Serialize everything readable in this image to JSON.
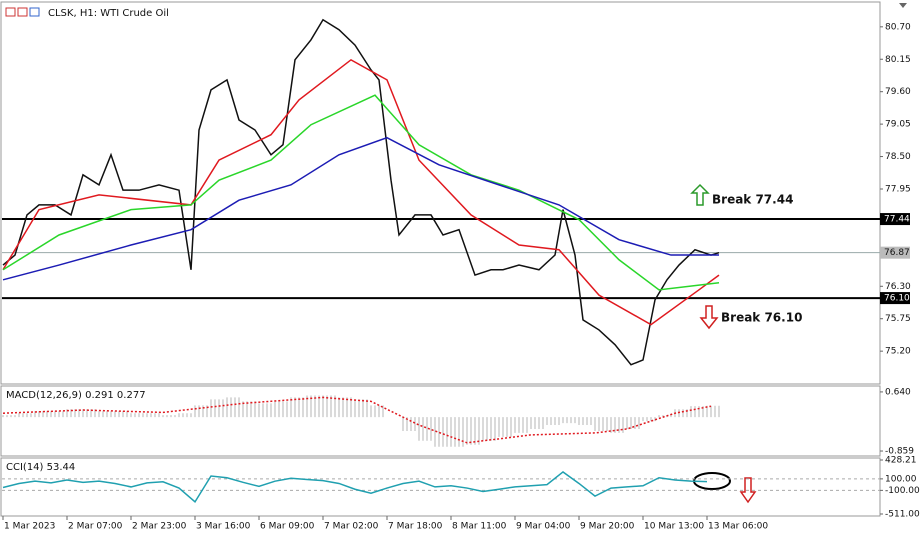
{
  "chart_data": [
    {
      "type": "line",
      "title": "CLSK, H1:  WTI Crude Oil",
      "grid": false,
      "xlim": [
        -0.25,
        219.25
      ],
      "xticks": [
        {
          "value": 0,
          "label": "1 Mar 2023"
        },
        {
          "value": 16,
          "label": "2 Mar 07:00"
        },
        {
          "value": 32,
          "label": "2 Mar 23:00"
        },
        {
          "value": 48,
          "label": "3 Mar 16:00"
        },
        {
          "value": 64,
          "label": "6 Mar 09:00"
        },
        {
          "value": 80,
          "label": "7 Mar 02:00"
        },
        {
          "value": 96,
          "label": "7 Mar 18:00"
        },
        {
          "value": 112,
          "label": "8 Mar 11:00"
        },
        {
          "value": 128,
          "label": "9 Mar 04:00"
        },
        {
          "value": 144,
          "label": "9 Mar 20:00"
        },
        {
          "value": 160,
          "label": "10 Mar 13:00"
        },
        {
          "value": 176,
          "label": "13 Mar 06:00"
        }
      ],
      "ylim": [
        74.66,
        81.07
      ],
      "yticks": [
        {
          "value": 80.7,
          "label": "80.70"
        },
        80.15,
        {
          "value": 79.6,
          "label": "79.60"
        },
        79.05,
        {
          "value": 78.5,
          "label": "78.50"
        },
        77.95,
        {
          "value": 76.3,
          "label": "76.30"
        },
        75.75,
        {
          "value": 75.2,
          "label": "75.20"
        }
      ],
      "levels": [
        77.44,
        {
          "value": 76.1,
          "label": "76.10"
        }
      ],
      "current_price": 76.87,
      "annotations": [
        "Break 77.44",
        "Break 76.10"
      ],
      "series": [
        {
          "color": "#111111",
          "x": [
            0,
            3,
            6,
            9,
            13,
            17,
            20,
            24,
            27,
            30,
            34,
            39,
            44,
            47,
            49,
            52,
            56,
            59,
            63,
            67,
            70,
            73,
            77,
            80,
            84,
            88,
            92,
            94,
            97,
            99,
            103,
            107,
            110,
            114,
            118,
            122,
            125,
            129,
            134,
            138,
            140,
            143,
            145,
            149,
            153,
            157,
            160,
            163,
            166,
            169,
            173,
            177,
            179
          ],
          "values": [
            76.66,
            76.83,
            77.51,
            77.68,
            77.68,
            77.51,
            78.19,
            78.02,
            78.53,
            77.93,
            77.93,
            78.02,
            77.93,
            76.58,
            78.95,
            79.63,
            79.8,
            79.12,
            78.95,
            78.53,
            78.7,
            80.14,
            80.48,
            80.82,
            80.65,
            80.39,
            79.97,
            79.8,
            78.1,
            77.17,
            77.51,
            77.51,
            77.17,
            77.26,
            76.49,
            76.58,
            76.58,
            76.66,
            76.58,
            76.83,
            77.6,
            76.83,
            75.73,
            75.56,
            75.31,
            74.97,
            75.05,
            76.07,
            76.41,
            76.66,
            76.92,
            76.83,
            76.87
          ]
        },
        {
          "color": "#e0191f",
          "x": [
            0,
            9,
            24,
            47,
            54,
            67,
            74,
            87,
            96,
            104,
            117,
            129,
            139,
            149,
            162,
            174,
            179
          ],
          "values": [
            76.58,
            77.6,
            77.85,
            77.68,
            78.44,
            78.87,
            79.46,
            80.14,
            79.8,
            78.44,
            77.51,
            77.0,
            76.92,
            76.15,
            75.65,
            76.24,
            76.49
          ]
        },
        {
          "color": "#2ad62a",
          "x": [
            0,
            14,
            32,
            47,
            54,
            67,
            77,
            93,
            104,
            117,
            129,
            144,
            154,
            164,
            174,
            179
          ],
          "values": [
            76.58,
            77.17,
            77.6,
            77.68,
            78.1,
            78.44,
            79.04,
            79.54,
            78.7,
            78.19,
            77.93,
            77.43,
            76.75,
            76.24,
            76.32,
            76.36
          ]
        },
        {
          "color": "#1c1cb4",
          "x": [
            0,
            14,
            32,
            47,
            59,
            72,
            84,
            96,
            109,
            124,
            139,
            154,
            167,
            179
          ],
          "values": [
            76.41,
            76.66,
            77.0,
            77.26,
            77.76,
            78.02,
            78.53,
            78.82,
            78.36,
            78.02,
            77.68,
            77.09,
            76.83,
            76.83
          ]
        }
      ]
    },
    {
      "type": "bar",
      "title": "MACD(12,26,9) 0.291 0.277",
      "ylim": [
        -0.96,
        0.79
      ],
      "yticks": [
        {
          "value": 0.64,
          "label": "0.640"
        },
        -0.859
      ],
      "series": [
        {
          "style": "bar",
          "color": "#b4b4b4",
          "x": [
            0,
            4,
            8,
            12,
            16,
            20,
            24,
            28,
            32,
            36,
            40,
            44,
            48,
            52,
            56,
            60,
            64,
            68,
            72,
            76,
            80,
            84,
            88,
            92,
            96,
            100,
            104,
            108,
            112,
            116,
            120,
            124,
            128,
            132,
            136,
            140,
            144,
            148,
            152,
            156,
            160,
            164,
            168,
            172,
            176
          ],
          "values": [
            0.05,
            0.1,
            0.15,
            0.15,
            0.2,
            0.2,
            0.15,
            0.15,
            0.1,
            0.1,
            0.05,
            0.1,
            0.3,
            0.45,
            0.5,
            0.4,
            0.35,
            0.4,
            0.5,
            0.55,
            0.55,
            0.5,
            0.45,
            0.3,
            0.0,
            -0.35,
            -0.6,
            -0.75,
            -0.75,
            -0.7,
            -0.6,
            -0.5,
            -0.4,
            -0.3,
            -0.2,
            -0.15,
            -0.2,
            -0.35,
            -0.4,
            -0.3,
            -0.1,
            0.05,
            0.2,
            0.28,
            0.29
          ]
        },
        {
          "style": "dashed",
          "color": "#e0191f",
          "x": [
            0,
            20,
            40,
            60,
            80,
            92,
            104,
            116,
            132,
            148,
            156,
            168,
            177
          ],
          "values": [
            0.1,
            0.18,
            0.12,
            0.35,
            0.5,
            0.4,
            -0.2,
            -0.65,
            -0.45,
            -0.4,
            -0.3,
            0.1,
            0.277
          ]
        }
      ]
    },
    {
      "type": "line",
      "title": "CCI(14) 53.44",
      "ylim": [
        -511,
        428.21
      ],
      "yticks": [
        428.21,
        {
          "value": 100,
          "label": "100.00"
        },
        {
          "value": -100,
          "label": "-100.00"
        },
        {
          "value": -511,
          "label": "-511.00"
        }
      ],
      "levels": [
        100,
        -100
      ],
      "series": [
        {
          "color": "#20a0b0",
          "x": [
            0,
            4,
            8,
            12,
            16,
            20,
            24,
            28,
            32,
            36,
            40,
            44,
            48,
            52,
            56,
            60,
            64,
            68,
            72,
            76,
            80,
            84,
            88,
            92,
            96,
            100,
            104,
            108,
            112,
            116,
            120,
            124,
            128,
            132,
            136,
            140,
            144,
            148,
            152,
            156,
            160,
            164,
            168,
            172,
            176
          ],
          "values": [
            -50,
            20,
            60,
            30,
            80,
            40,
            60,
            20,
            -40,
            30,
            50,
            -60,
            -300,
            150,
            120,
            40,
            -30,
            60,
            110,
            90,
            70,
            20,
            -80,
            -150,
            -60,
            20,
            60,
            -40,
            -20,
            -60,
            -120,
            -80,
            -40,
            -20,
            0,
            220,
            20,
            -200,
            -60,
            -40,
            -20,
            120,
            80,
            60,
            53
          ]
        }
      ]
    }
  ]
}
